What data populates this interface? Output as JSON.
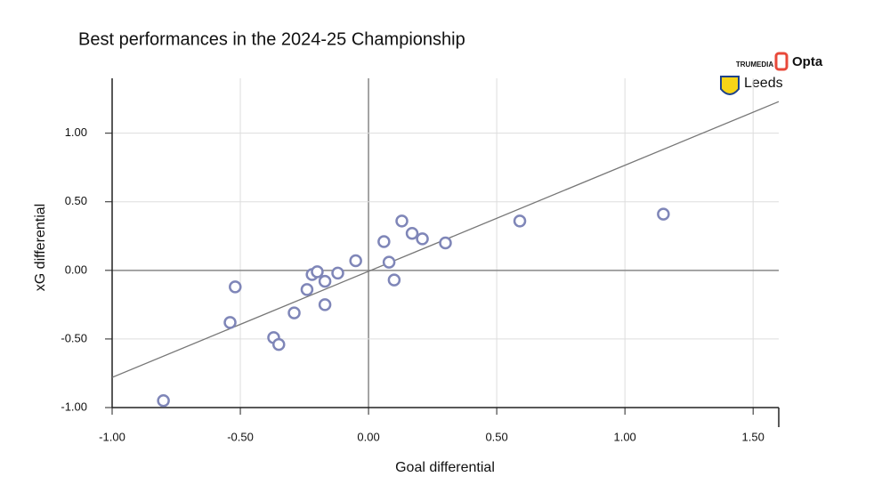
{
  "chart_data": {
    "type": "scatter",
    "title": "Best performances in the 2024-25 Championship",
    "xlabel": "Goal differential",
    "ylabel": "xG differential",
    "branding": [
      "TRUMEDIA",
      "Opta",
      "Leeds"
    ],
    "x": [
      -0.8,
      -0.54,
      -0.52,
      -0.37,
      -0.35,
      -0.29,
      -0.24,
      -0.22,
      -0.2,
      -0.17,
      -0.17,
      -0.12,
      -0.05,
      0.06,
      0.08,
      0.1,
      0.13,
      0.17,
      0.21,
      0.3,
      0.59,
      1.15
    ],
    "values": [
      -0.95,
      -0.38,
      -0.12,
      -0.49,
      -0.54,
      -0.31,
      -0.14,
      -0.03,
      -0.01,
      -0.25,
      -0.08,
      -0.02,
      0.07,
      0.21,
      0.06,
      -0.07,
      0.36,
      0.27,
      0.23,
      0.2,
      0.36,
      0.41
    ],
    "color": "#7f86b8",
    "trend_line": {
      "x": [
        -1.0,
        1.6
      ],
      "y": [
        -0.78,
        1.23
      ],
      "color": "#777777"
    },
    "xlim": [
      -1.0,
      1.6
    ],
    "ylim": [
      -1.0,
      1.4
    ],
    "xticks": [
      {
        "value": -1,
        "label": "-1.00"
      },
      {
        "value": -0.5,
        "label": "-0.50"
      },
      {
        "value": 0,
        "label": "0.00"
      },
      {
        "value": 0.5,
        "label": "0.50"
      },
      {
        "value": 1,
        "label": "1.00"
      },
      {
        "value": 1.5,
        "label": "1.50"
      }
    ],
    "yticks": [
      {
        "value": -1,
        "label": "-1.00"
      },
      {
        "value": -0.5,
        "label": "-0.50"
      },
      {
        "value": 0,
        "label": "0.00"
      },
      {
        "value": 0.5,
        "label": "0.50"
      },
      {
        "value": 1,
        "label": "1.00"
      }
    ],
    "grid": true
  }
}
